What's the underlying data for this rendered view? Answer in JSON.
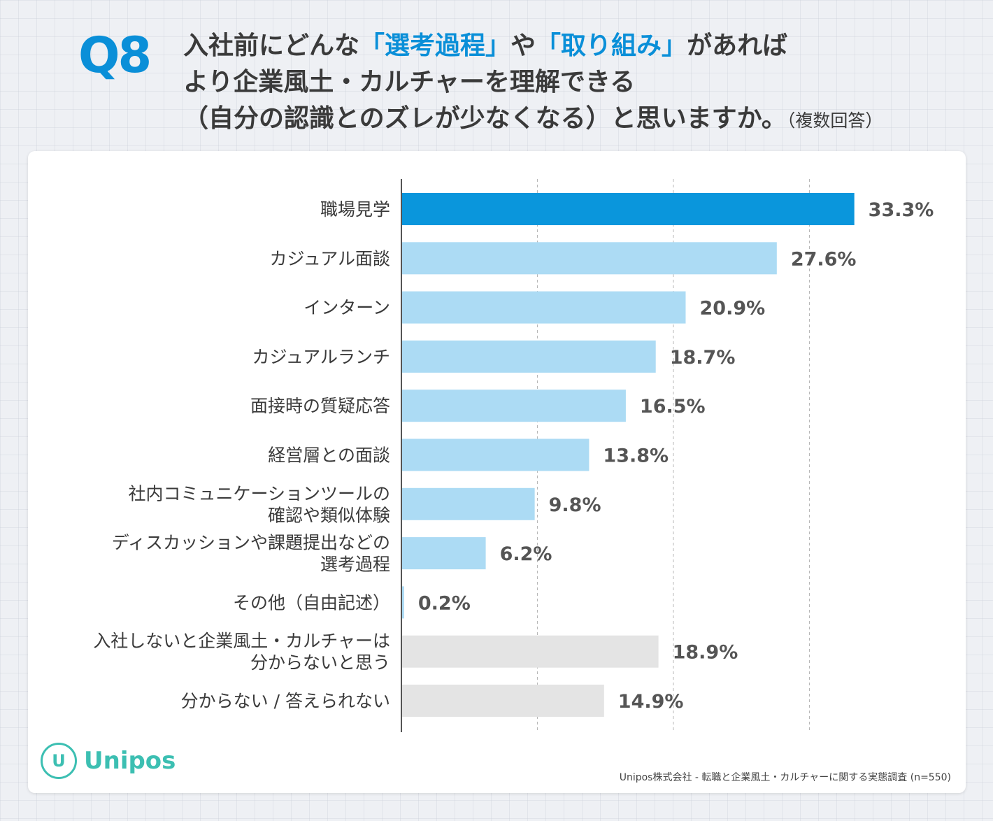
{
  "question": {
    "badge": "Q8",
    "line1_pre": "入社前にどんな",
    "line1_hl1": "「選考過程」",
    "line1_mid": "や",
    "line1_hl2": "「取り組み」",
    "line1_post": "があれば",
    "line2": "より企業風土・カルチャーを理解できる",
    "line3": "（自分の認識とのズレが少なくなる）と思いますか。",
    "line3_note": "（複数回答）"
  },
  "colors": {
    "highlight": "#0a8fd8",
    "main_bar": "#0a96dc",
    "light_bar": "#acdbf4",
    "gray_bar": "#e4e4e4",
    "text": "#3a3a3a",
    "value_text": "#555555",
    "gridline": "#b7b7b7",
    "axis": "#555555",
    "brand": "#3cbfb2"
  },
  "chart_data": {
    "type": "bar",
    "orientation": "horizontal",
    "title": "入社前にどんな「選考過程」や「取り組み」があればより企業風土・カルチャーを理解できる（自分の認識とのズレが少なくなる）と思いますか。（複数回答）",
    "xlim": [
      0,
      40
    ],
    "grid": true,
    "unit": "%",
    "categories": [
      [
        "職場見学"
      ],
      [
        "カジュアル面談"
      ],
      [
        "インターン"
      ],
      [
        "カジュアルランチ"
      ],
      [
        "面接時の質疑応答"
      ],
      [
        "経営層との面談"
      ],
      [
        "社内コミュニケーションツールの",
        "確認や類似体験"
      ],
      [
        "ディスカッションや課題提出などの",
        "選考過程"
      ],
      [
        "その他（自由記述）"
      ],
      [
        "入社しないと企業風土・カルチャーは",
        "分からないと思う"
      ],
      [
        "分からない / 答えられない"
      ]
    ],
    "values": [
      33.3,
      27.6,
      20.9,
      18.7,
      16.5,
      13.8,
      9.8,
      6.2,
      0.2,
      18.9,
      14.9
    ],
    "value_labels": [
      "33.3%",
      "27.6%",
      "20.9%",
      "18.7%",
      "16.5%",
      "13.8%",
      "9.8%",
      "6.2%",
      "0.2%",
      "18.9%",
      "14.9%"
    ],
    "bar_style": [
      "main",
      "light",
      "light",
      "light",
      "light",
      "light",
      "light",
      "light",
      "light",
      "gray",
      "gray"
    ]
  },
  "footer": {
    "logo_text": "Unipos",
    "logo_mark": "U",
    "source": "Unipos株式会社 - 転職と企業風土・カルチャーに関する実態調査 (n=550)"
  }
}
